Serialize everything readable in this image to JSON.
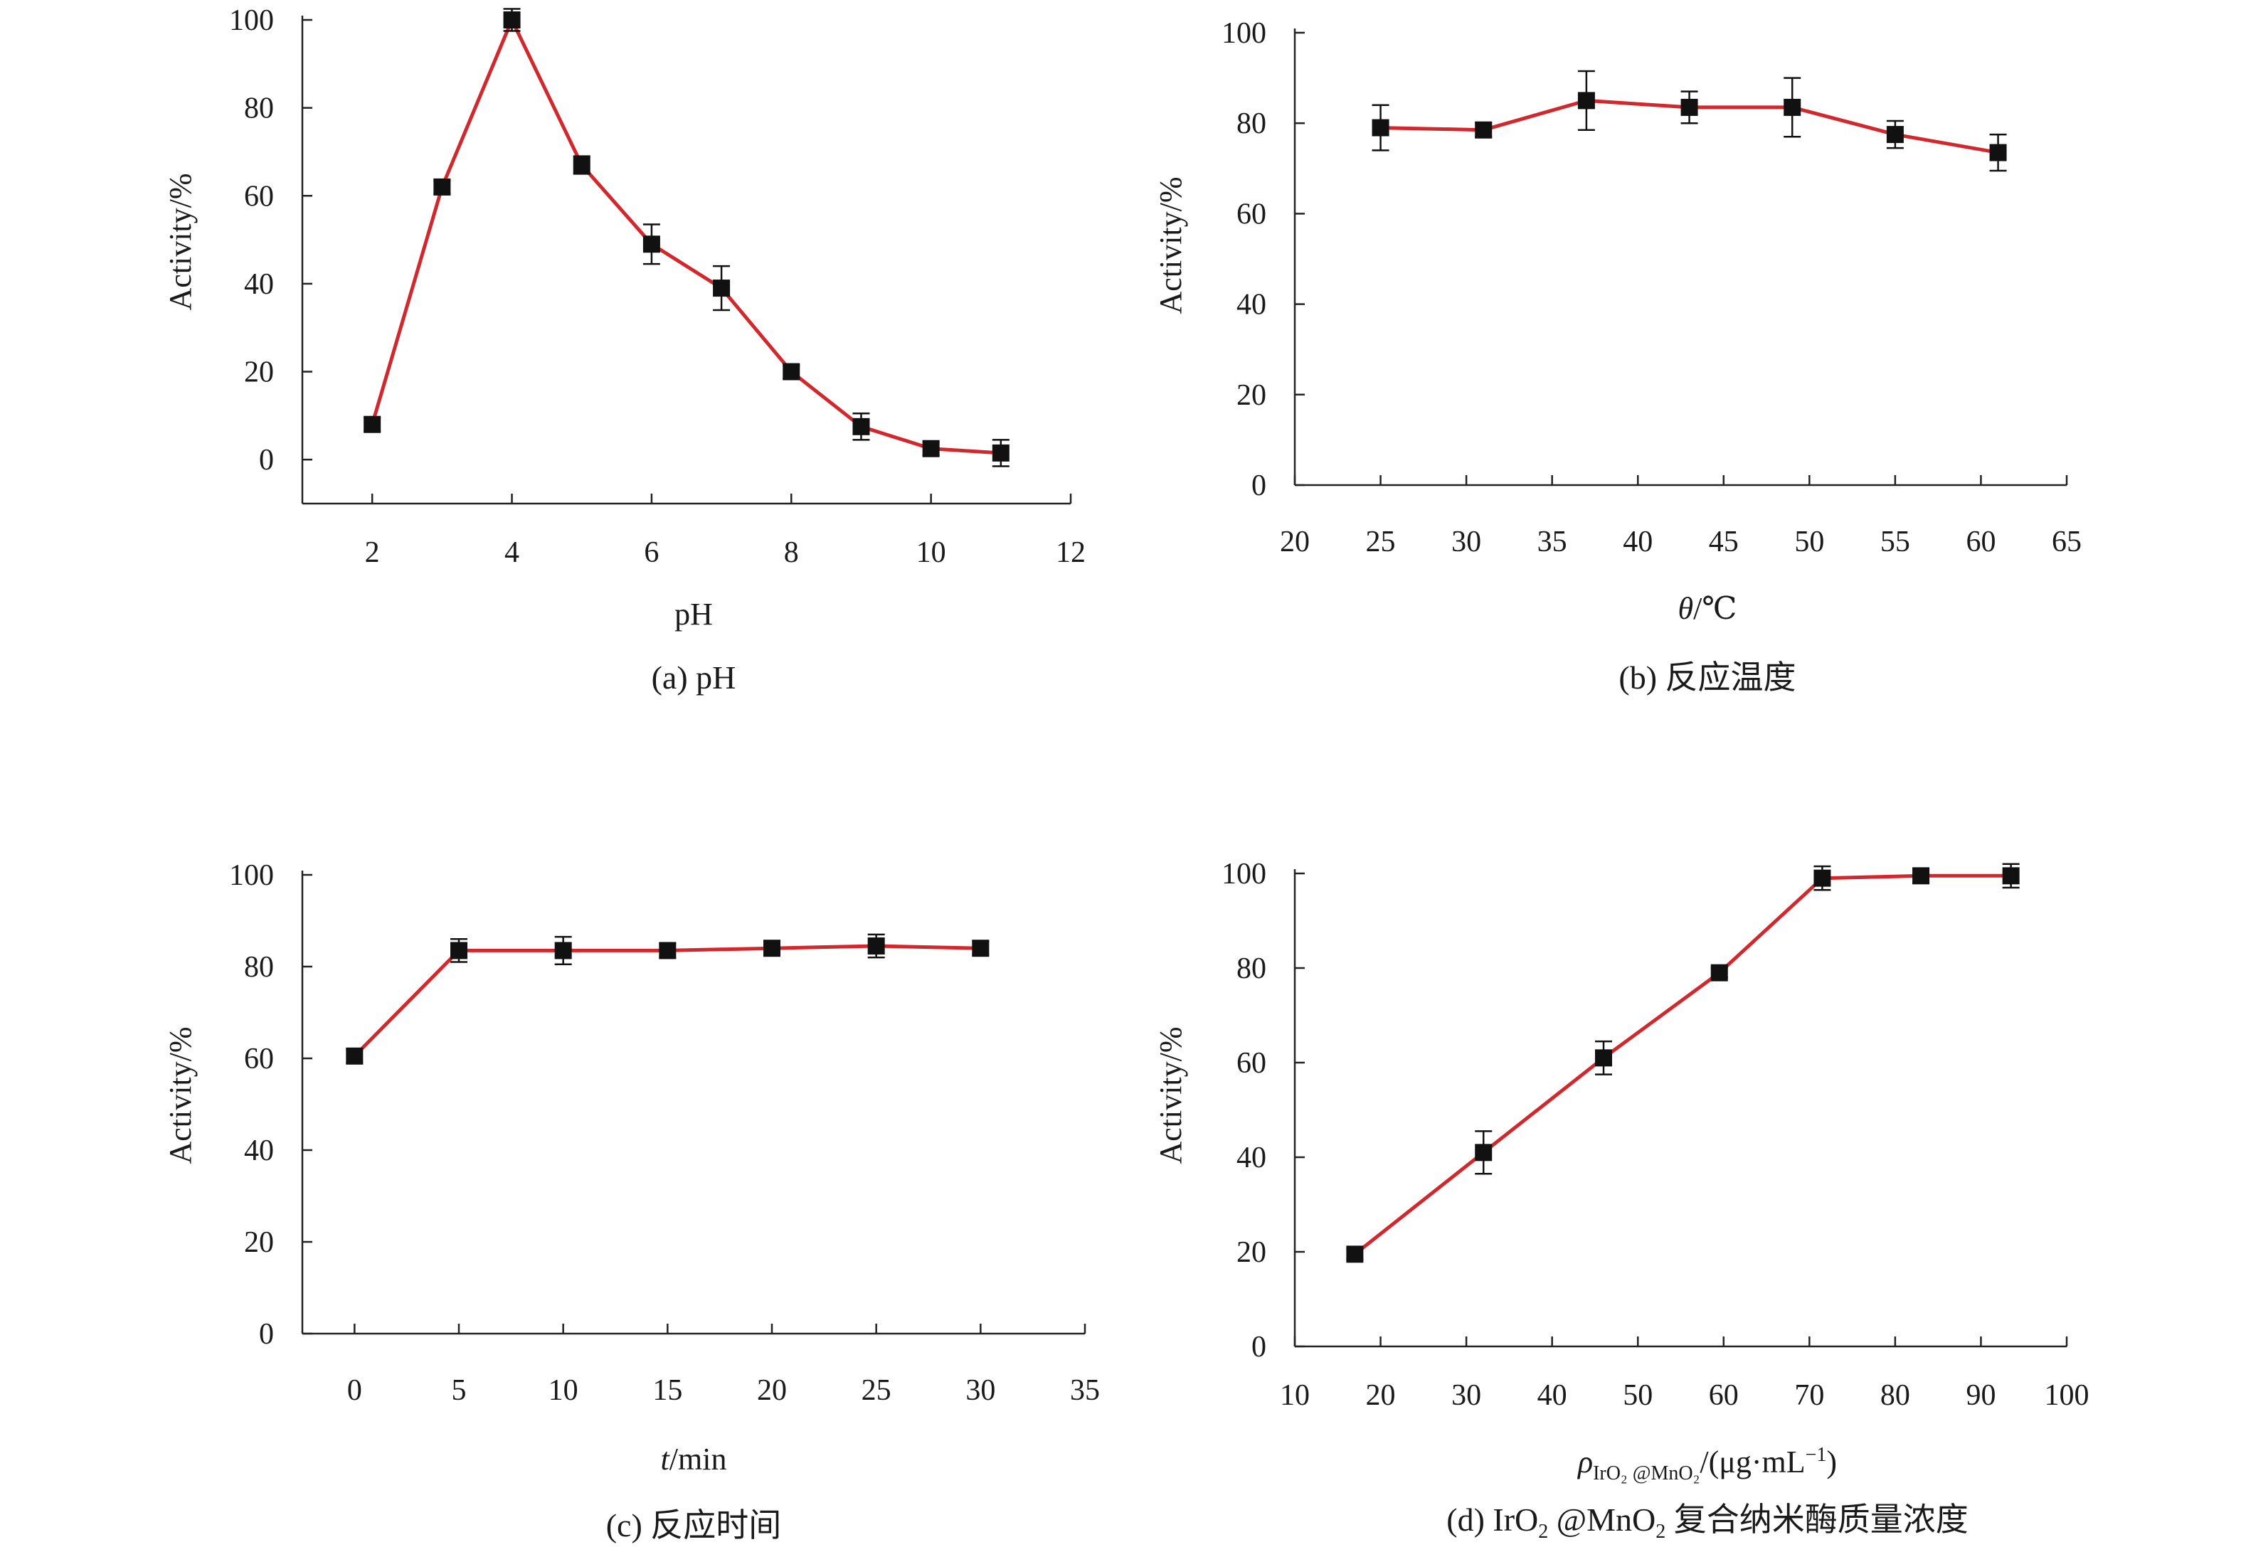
{
  "colors": {
    "line": "#d0282c",
    "marker": "#111111",
    "axis": "#222222",
    "text": "#1a1a1a"
  },
  "chart_data": [
    {
      "id": "a",
      "type": "line",
      "caption": "(a) pH",
      "xlabel": "pH",
      "ylabel": "Activity/%",
      "xlim": [
        1,
        12
      ],
      "ylim": [
        -10,
        100
      ],
      "xticks": [
        2,
        4,
        6,
        8,
        10,
        12
      ],
      "yticks": [
        0,
        20,
        40,
        60,
        80,
        100
      ],
      "x": [
        2,
        3,
        4,
        5,
        6,
        7,
        8,
        9,
        10,
        11
      ],
      "values": [
        8,
        62,
        100,
        67,
        49,
        39,
        20,
        7.5,
        2.5,
        1.5
      ],
      "errors": [
        1.5,
        1.5,
        2.5,
        2,
        4.5,
        5,
        1.5,
        3,
        1.5,
        3
      ]
    },
    {
      "id": "b",
      "type": "line",
      "caption": "(b) 反应温度",
      "xlabel": "θ/℃",
      "ylabel": "Activity/%",
      "xlim": [
        20,
        65
      ],
      "ylim": [
        0,
        100
      ],
      "xticks": [
        20,
        25,
        30,
        35,
        40,
        45,
        50,
        55,
        60,
        65
      ],
      "yticks": [
        0,
        20,
        40,
        60,
        80,
        100
      ],
      "x": [
        25,
        31,
        37,
        43,
        49,
        55,
        61
      ],
      "values": [
        79,
        78.5,
        85,
        83.5,
        83.5,
        77.5,
        73.5
      ],
      "errors": [
        5,
        1.5,
        6.5,
        3.5,
        6.5,
        3,
        4
      ]
    },
    {
      "id": "c",
      "type": "line",
      "caption": "(c) 反应时间",
      "xlabel": "t/min",
      "ylabel": "Activity/%",
      "xlim": [
        -2.5,
        35
      ],
      "ylim": [
        0,
        100
      ],
      "xticks": [
        0,
        5,
        10,
        15,
        20,
        25,
        30,
        35
      ],
      "yticks": [
        0,
        20,
        40,
        60,
        80,
        100
      ],
      "x": [
        0,
        5,
        10,
        15,
        20,
        25,
        30
      ],
      "values": [
        60.5,
        83.5,
        83.5,
        83.5,
        84,
        84.5,
        84
      ],
      "errors": [
        1.5,
        2.5,
        3,
        1.5,
        1.5,
        2.5,
        1.5
      ]
    },
    {
      "id": "d",
      "type": "line",
      "caption": "(d) IrO₂ @MnO₂ 复合纳米酶质量浓度",
      "xlabel": "ρIrO₂ @MnO₂/(μg·mL⁻¹)",
      "ylabel": "Activity/%",
      "xlim": [
        10,
        100
      ],
      "ylim": [
        0,
        100
      ],
      "xticks": [
        10,
        20,
        30,
        40,
        50,
        60,
        70,
        80,
        90,
        100
      ],
      "yticks": [
        0,
        20,
        40,
        60,
        80,
        100
      ],
      "x": [
        17,
        32,
        46,
        59.5,
        71.5,
        83,
        93.5
      ],
      "values": [
        19.5,
        41,
        61,
        79,
        99,
        99.5,
        99.5
      ],
      "errors": [
        1,
        4.5,
        3.5,
        1,
        2.5,
        1.5,
        2.5
      ]
    }
  ]
}
